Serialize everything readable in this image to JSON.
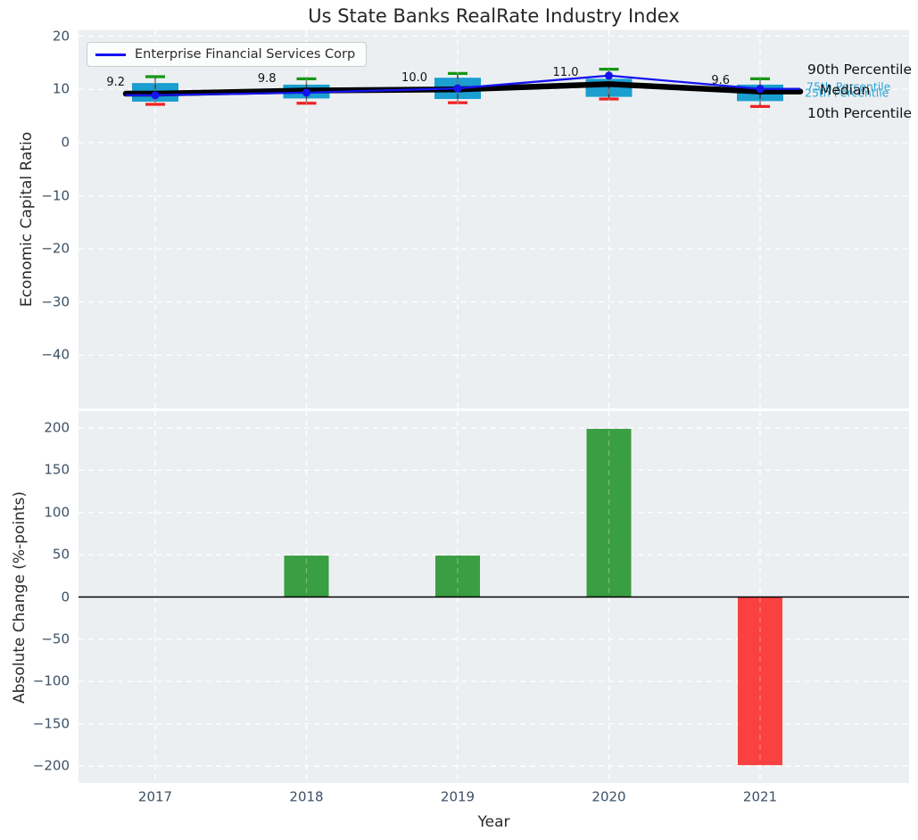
{
  "title": "Us State Banks RealRate Industry Index",
  "legend": {
    "series_label": "Enterprise Financial Services Corp"
  },
  "percentile_labels": {
    "p90": "90th Percentile",
    "p75": "75th Percentile",
    "median": "Median",
    "p25": "25th Percentile",
    "p10": "10th Percentile"
  },
  "colors": {
    "company_line": "#1414ee",
    "median_line": "#000000",
    "box_fill": "#1b9ed0",
    "whisker_high_cap": "#169616",
    "whisker_low_cap": "#ee2222",
    "whisker_stem": "#3a3a3a",
    "bar_positive": "#3a9e42",
    "bar_negative": "#f94141",
    "percentile_text": "#2aa6d8",
    "panel_bg": "#eceff1",
    "grid": "#ffffff",
    "tick_text": "#3d5166",
    "text": "#2b2b2b"
  },
  "chart_data": [
    {
      "type": "boxplot+line",
      "title": "Us State Banks RealRate Industry Index",
      "ylabel": "Economic Capital Ratio",
      "categories": [
        "2017",
        "2018",
        "2019",
        "2020",
        "2021"
      ],
      "yticks": [
        20,
        10,
        0,
        -10,
        -20,
        -30,
        -40
      ],
      "ylim": [
        -50,
        21.2
      ],
      "grid": true,
      "legend_position": "upper left",
      "company_series": {
        "name": "Enterprise Financial Services Corp",
        "values": [
          8.9,
          9.4,
          10.2,
          12.6,
          10.1
        ]
      },
      "median_series": {
        "name": "Median",
        "values": [
          9.2,
          9.8,
          10.0,
          11.0,
          9.6
        ]
      },
      "median_point_labels": [
        "9.2",
        "9.8",
        "10.0",
        "11.0",
        "9.6"
      ],
      "boxes": [
        {
          "category": "2017",
          "p10": 7.2,
          "p25": 7.7,
          "median": 9.2,
          "p75": 11.2,
          "p90": 12.4
        },
        {
          "category": "2018",
          "p10": 7.4,
          "p25": 8.3,
          "median": 9.8,
          "p75": 10.9,
          "p90": 12.0
        },
        {
          "category": "2019",
          "p10": 7.5,
          "p25": 8.2,
          "median": 10.0,
          "p75": 12.2,
          "p90": 13.0
        },
        {
          "category": "2020",
          "p10": 8.2,
          "p25": 8.6,
          "median": 11.0,
          "p75": 12.0,
          "p90": 13.8
        },
        {
          "category": "2021",
          "p10": 6.8,
          "p25": 7.8,
          "median": 9.6,
          "p75": 10.9,
          "p90": 12.0
        }
      ]
    },
    {
      "type": "bar",
      "ylabel": "Absolute Change (%-points)",
      "xlabel": "Year",
      "categories": [
        "2017",
        "2018",
        "2019",
        "2020",
        "2021"
      ],
      "values": [
        0,
        49,
        49,
        199,
        -199
      ],
      "yticks": [
        200,
        150,
        100,
        50,
        0,
        -50,
        -100,
        -150,
        -200
      ],
      "ylim": [
        -220,
        220
      ],
      "grid": true,
      "zero_line": true
    }
  ]
}
